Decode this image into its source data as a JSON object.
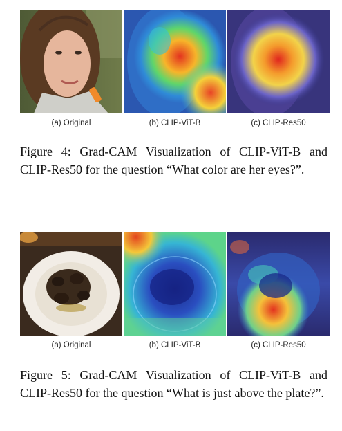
{
  "figure4": {
    "panel_labels": [
      "(a) Original",
      "(b) CLIP-ViT-B",
      "(c) CLIP-Res50"
    ],
    "caption": "Figure 4: Grad-CAM Visualization of CLIP-ViT-B and CLIP-Res50 for the question “What color are her eyes?”."
  },
  "figure5": {
    "panel_labels": [
      "(a) Original",
      "(b) CLIP-ViT-B",
      "(c) CLIP-Res50"
    ],
    "caption": "Figure 5: Grad-CAM Visualization of CLIP-ViT-B and CLIP-Res50 for the question “What is just above the plate?”."
  }
}
